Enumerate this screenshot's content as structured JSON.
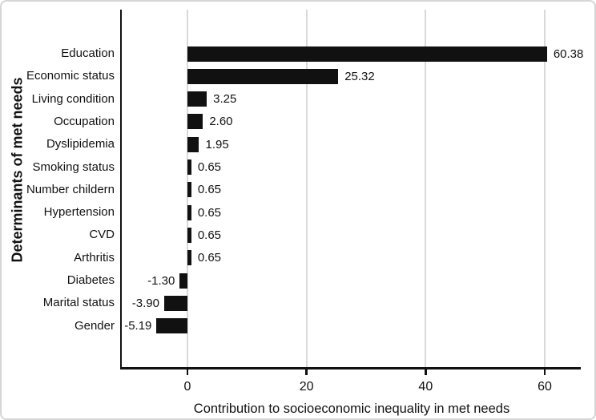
{
  "chart_data": {
    "type": "bar",
    "orientation": "horizontal",
    "categories": [
      "Education",
      "Economic status",
      "Living condition",
      "Occupation",
      "Dyslipidemia",
      "Smoking status",
      "Number childern",
      "Hypertension",
      "CVD",
      "Arthritis",
      "Diabetes",
      "Marital status",
      "Gender"
    ],
    "values": [
      60.38,
      25.32,
      3.25,
      2.6,
      1.95,
      0.65,
      0.65,
      0.65,
      0.65,
      0.65,
      -1.3,
      -3.9,
      -5.19
    ],
    "value_labels": [
      "60.38",
      "25.32",
      "3.25",
      "2.60",
      "1.95",
      "0.65",
      "0.65",
      "0.65",
      "0.65",
      "0.65",
      "-1.30",
      "-3.90",
      "-5.19"
    ],
    "xlabel": "Contribution to socioeconomic inequality in met needs",
    "ylabel": "Determinants of met needs",
    "xticks": [
      0,
      20,
      40,
      60
    ],
    "xtick_labels": [
      "0",
      "20",
      "40",
      "60"
    ],
    "xlim": [
      -11,
      66
    ],
    "grid": "vertical",
    "legend": "none",
    "bar_color": "#111111",
    "gridline_color": "#d9d9d9",
    "axis_color": "#111111"
  }
}
